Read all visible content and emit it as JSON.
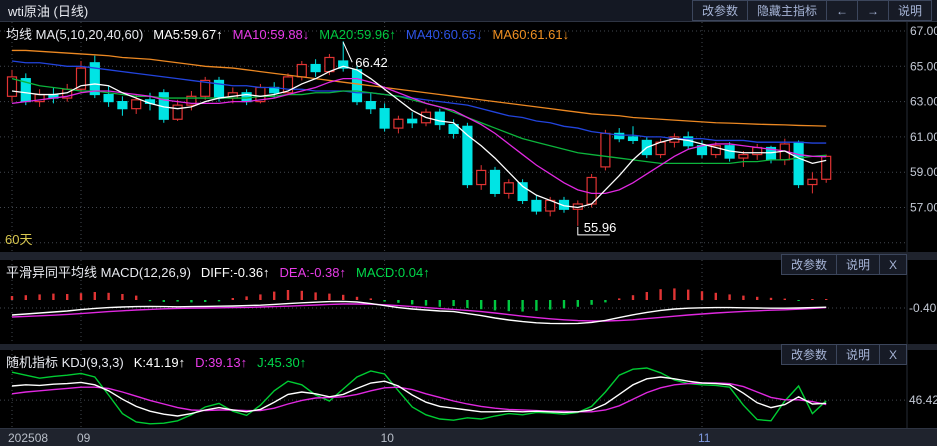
{
  "header": {
    "title": "wti原油 (日线)",
    "buttons": {
      "change_params": "改参数",
      "hide_main_indicator": "隐藏主指标",
      "arrow_left": "←",
      "arrow_right": "→",
      "help": "说明"
    }
  },
  "main_panel": {
    "indicator_label": "均线 MA(5,10,20,40,60)",
    "ma_labels": [
      {
        "text": "MA5:59.67↑",
        "color": "#ffffff"
      },
      {
        "text": "MA10:59.88↓",
        "color": "#e83ce8"
      },
      {
        "text": "MA20:59.96↑",
        "color": "#00c840"
      },
      {
        "text": "MA40:60.65↓",
        "color": "#2e54e8"
      },
      {
        "text": "MA60:61.61↓",
        "color": "#f09022"
      }
    ],
    "period_label": "60天",
    "y_axis_labels": [
      "67.00",
      "65.00",
      "63.00",
      "61.00",
      "59.00",
      "57.00"
    ]
  },
  "macd_panel": {
    "indicator_label": "平滑异同平均线 MACD(12,26,9)",
    "value_labels": [
      {
        "text": "DIFF:-0.36↑",
        "color": "#ffffff"
      },
      {
        "text": "DEA:-0.38↑",
        "color": "#e83ce8"
      },
      {
        "text": "MACD:0.04↑",
        "color": "#00d84a"
      }
    ],
    "buttons": {
      "change_params": "改参数",
      "help": "说明",
      "close": "X"
    },
    "y_axis_label": "-0.40"
  },
  "kdj_panel": {
    "indicator_label": "随机指标 KDJ(9,3,3)",
    "value_labels": [
      {
        "text": "K:41.19↑",
        "color": "#ffffff"
      },
      {
        "text": "D:39.13↑",
        "color": "#e83ce8"
      },
      {
        "text": "J:45.30↑",
        "color": "#00d84a"
      }
    ],
    "buttons": {
      "change_params": "改参数",
      "help": "说明",
      "close": "X"
    },
    "y_axis_label": "46.42"
  },
  "x_axis": {
    "labels": [
      {
        "text": "202508",
        "candle_index": 0,
        "highlight": false
      },
      {
        "text": "09",
        "candle_index": 5,
        "highlight": false
      },
      {
        "text": "10",
        "candle_index": 27,
        "highlight": false
      },
      {
        "text": "11",
        "candle_index": 50,
        "highlight": true
      }
    ]
  },
  "colors": {
    "up": "#e13434",
    "down": "#00e4e4",
    "ma5": "#ffffff",
    "ma10": "#e028e0",
    "ma20": "#0cb43c",
    "ma40": "#2244dd",
    "ma60": "#ec8822",
    "diff": "#ffffff",
    "dea": "#e028e0",
    "hist_up": "#e13434",
    "hist_down": "#00c840",
    "k": "#ffffff",
    "d": "#e028e0",
    "j": "#00cc33",
    "grid": "#4a4f58",
    "annotation": "#ffffff",
    "panel_border": "#262b36"
  },
  "chart_data": {
    "type": "candlestick",
    "symbol": "wti原油",
    "period": "日线",
    "visible_days": 60,
    "price_axis": {
      "gridlines": [
        67,
        65,
        63,
        61,
        59,
        57,
        55
      ],
      "labeled": [
        67,
        65,
        63,
        61,
        59,
        57
      ]
    },
    "high_annotation": {
      "index": 24,
      "value": 66.42,
      "label": "66.42"
    },
    "low_annotation": {
      "index": 41,
      "value": 55.96,
      "label": "55.96"
    },
    "candles": [
      [
        63.3,
        64.8,
        63.0,
        64.4
      ],
      [
        64.3,
        64.6,
        62.8,
        63.0
      ],
      [
        63.0,
        63.7,
        62.7,
        63.4
      ],
      [
        63.4,
        63.8,
        62.9,
        63.2
      ],
      [
        63.2,
        64.0,
        63.0,
        63.7
      ],
      [
        63.7,
        65.3,
        63.5,
        64.9
      ],
      [
        65.2,
        65.6,
        63.2,
        63.4
      ],
      [
        63.4,
        63.9,
        62.7,
        63.0
      ],
      [
        63.0,
        63.3,
        62.2,
        62.6
      ],
      [
        62.6,
        63.4,
        62.3,
        63.1
      ],
      [
        63.1,
        63.5,
        62.5,
        62.9
      ],
      [
        63.5,
        63.7,
        61.8,
        62.0
      ],
      [
        62.0,
        63.1,
        61.9,
        62.8
      ],
      [
        62.8,
        63.6,
        62.5,
        63.3
      ],
      [
        63.3,
        64.4,
        63.1,
        64.2
      ],
      [
        64.2,
        64.4,
        63.0,
        63.2
      ],
      [
        63.2,
        63.8,
        62.9,
        63.5
      ],
      [
        63.5,
        63.7,
        62.8,
        63.0
      ],
      [
        63.0,
        64.0,
        62.9,
        63.8
      ],
      [
        63.8,
        64.1,
        63.2,
        63.5
      ],
      [
        63.5,
        64.6,
        63.4,
        64.4
      ],
      [
        64.4,
        65.3,
        64.2,
        65.1
      ],
      [
        65.1,
        65.4,
        64.4,
        64.7
      ],
      [
        64.7,
        65.7,
        64.5,
        65.5
      ],
      [
        65.3,
        66.42,
        64.7,
        64.9
      ],
      [
        64.8,
        65.0,
        62.8,
        63.0
      ],
      [
        63.0,
        63.5,
        62.3,
        62.6
      ],
      [
        62.6,
        62.9,
        61.3,
        61.5
      ],
      [
        61.5,
        62.2,
        61.2,
        62.0
      ],
      [
        62.0,
        62.4,
        61.5,
        61.8
      ],
      [
        61.8,
        62.6,
        61.6,
        62.4
      ],
      [
        62.4,
        62.6,
        61.4,
        61.7
      ],
      [
        61.7,
        62.0,
        60.9,
        61.2
      ],
      [
        61.6,
        61.8,
        58.1,
        58.3
      ],
      [
        58.3,
        59.4,
        58.0,
        59.1
      ],
      [
        59.1,
        59.3,
        57.6,
        57.8
      ],
      [
        57.8,
        58.6,
        57.5,
        58.4
      ],
      [
        58.4,
        58.6,
        57.2,
        57.4
      ],
      [
        57.4,
        57.7,
        56.6,
        56.8
      ],
      [
        56.8,
        57.6,
        56.5,
        57.4
      ],
      [
        57.4,
        57.6,
        56.7,
        56.9
      ],
      [
        56.9,
        57.4,
        55.96,
        57.2
      ],
      [
        57.2,
        58.9,
        57.0,
        58.7
      ],
      [
        59.3,
        61.4,
        59.1,
        61.2
      ],
      [
        61.2,
        61.5,
        60.7,
        60.9
      ],
      [
        61.0,
        61.6,
        60.6,
        60.8
      ],
      [
        60.8,
        61.0,
        59.8,
        60.0
      ],
      [
        60.0,
        60.9,
        59.8,
        60.7
      ],
      [
        60.7,
        61.2,
        60.4,
        61.0
      ],
      [
        61.0,
        61.3,
        60.3,
        60.5
      ],
      [
        60.5,
        60.8,
        59.8,
        60.0
      ],
      [
        60.0,
        60.7,
        59.8,
        60.5
      ],
      [
        60.5,
        60.7,
        59.6,
        59.8
      ],
      [
        59.8,
        60.2,
        59.3,
        60.0
      ],
      [
        60.0,
        60.6,
        59.7,
        60.4
      ],
      [
        60.4,
        60.5,
        59.5,
        59.7
      ],
      [
        59.7,
        60.9,
        59.4,
        60.6
      ],
      [
        60.7,
        60.8,
        58.1,
        58.3
      ],
      [
        58.3,
        59.0,
        57.8,
        58.6
      ],
      [
        58.6,
        60.0,
        58.4,
        59.9
      ]
    ],
    "ma": {
      "ma5": [
        63.6,
        63.5,
        63.4,
        63.4,
        63.5,
        63.9,
        64.0,
        63.9,
        63.5,
        63.2,
        62.9,
        62.7,
        62.6,
        62.7,
        63.0,
        63.2,
        63.3,
        63.4,
        63.3,
        63.4,
        63.6,
        64.0,
        64.3,
        64.7,
        65.0,
        64.8,
        64.3,
        63.7,
        63.1,
        62.5,
        62.1,
        61.9,
        61.8,
        61.1,
        60.5,
        59.8,
        59.0,
        58.2,
        57.7,
        57.4,
        57.1,
        57.0,
        57.2,
        58.0,
        58.8,
        59.7,
        60.4,
        60.7,
        60.9,
        60.8,
        60.6,
        60.4,
        60.2,
        60.1,
        60.1,
        60.1,
        60.2,
        59.8,
        59.5,
        59.67
      ],
      "ma10": [
        62.9,
        63.0,
        63.1,
        63.2,
        63.3,
        63.5,
        63.6,
        63.6,
        63.5,
        63.4,
        63.3,
        63.1,
        63.0,
        62.9,
        62.9,
        62.9,
        63.0,
        63.0,
        63.1,
        63.2,
        63.4,
        63.6,
        63.8,
        64.1,
        64.3,
        64.3,
        64.1,
        63.8,
        63.5,
        63.2,
        62.9,
        62.7,
        62.5,
        62.1,
        61.7,
        61.2,
        60.6,
        60.0,
        59.4,
        58.9,
        58.4,
        58.0,
        57.8,
        57.8,
        58.0,
        58.4,
        58.9,
        59.4,
        59.9,
        60.3,
        60.5,
        60.6,
        60.6,
        60.5,
        60.4,
        60.3,
        60.2,
        60.0,
        59.9,
        59.88
      ],
      "ma20": [
        64.3,
        64.1,
        63.9,
        63.8,
        63.7,
        63.6,
        63.6,
        63.5,
        63.4,
        63.3,
        63.3,
        63.2,
        63.2,
        63.2,
        63.2,
        63.2,
        63.2,
        63.2,
        63.3,
        63.3,
        63.4,
        63.4,
        63.5,
        63.5,
        63.6,
        63.6,
        63.5,
        63.4,
        63.3,
        63.1,
        62.9,
        62.7,
        62.4,
        62.1,
        61.8,
        61.5,
        61.2,
        60.9,
        60.7,
        60.5,
        60.3,
        60.1,
        60.0,
        59.9,
        59.8,
        59.7,
        59.6,
        59.5,
        59.5,
        59.5,
        59.5,
        59.5,
        59.5,
        59.6,
        59.6,
        59.7,
        59.7,
        59.8,
        59.9,
        59.96
      ],
      "ma40": [
        65.3,
        65.2,
        65.2,
        65.1,
        65.0,
        65.0,
        64.9,
        64.8,
        64.7,
        64.6,
        64.5,
        64.4,
        64.3,
        64.2,
        64.1,
        64.0,
        63.9,
        63.9,
        63.8,
        63.8,
        63.7,
        63.7,
        63.6,
        63.6,
        63.6,
        63.5,
        63.5,
        63.4,
        63.3,
        63.2,
        63.1,
        63.0,
        62.9,
        62.8,
        62.6,
        62.4,
        62.2,
        62.1,
        61.9,
        61.8,
        61.6,
        61.5,
        61.3,
        61.2,
        61.1,
        61.1,
        61.0,
        61.0,
        60.9,
        60.9,
        60.9,
        60.8,
        60.8,
        60.8,
        60.7,
        60.7,
        60.7,
        60.7,
        60.65,
        60.65
      ],
      "ma60": [
        65.9,
        65.9,
        65.85,
        65.8,
        65.75,
        65.7,
        65.65,
        65.6,
        65.5,
        65.45,
        65.4,
        65.3,
        65.2,
        65.1,
        65.0,
        64.95,
        64.9,
        64.8,
        64.7,
        64.6,
        64.5,
        64.4,
        64.3,
        64.2,
        64.1,
        64.0,
        63.9,
        63.8,
        63.7,
        63.6,
        63.5,
        63.4,
        63.3,
        63.2,
        63.1,
        63.0,
        62.9,
        62.8,
        62.7,
        62.6,
        62.5,
        62.4,
        62.3,
        62.25,
        62.2,
        62.1,
        62.05,
        62.0,
        61.95,
        61.9,
        61.85,
        61.8,
        61.78,
        61.75,
        61.72,
        61.7,
        61.68,
        61.65,
        61.63,
        61.61
      ]
    },
    "macd": {
      "params": "12,26,9",
      "gridline_value": -0.4,
      "diff": [
        -0.75,
        -0.7,
        -0.65,
        -0.6,
        -0.55,
        -0.48,
        -0.42,
        -0.38,
        -0.35,
        -0.33,
        -0.32,
        -0.33,
        -0.34,
        -0.33,
        -0.32,
        -0.31,
        -0.3,
        -0.28,
        -0.26,
        -0.22,
        -0.18,
        -0.14,
        -0.11,
        -0.08,
        -0.07,
        -0.1,
        -0.18,
        -0.28,
        -0.38,
        -0.45,
        -0.5,
        -0.55,
        -0.58,
        -0.68,
        -0.78,
        -0.9,
        -1.0,
        -1.08,
        -1.14,
        -1.17,
        -1.18,
        -1.17,
        -1.12,
        -1.02,
        -0.88,
        -0.74,
        -0.62,
        -0.52,
        -0.45,
        -0.41,
        -0.39,
        -0.38,
        -0.38,
        -0.39,
        -0.4,
        -0.41,
        -0.41,
        -0.4,
        -0.38,
        -0.36
      ],
      "dea": [
        -0.85,
        -0.82,
        -0.79,
        -0.76,
        -0.72,
        -0.68,
        -0.63,
        -0.58,
        -0.54,
        -0.5,
        -0.47,
        -0.44,
        -0.42,
        -0.41,
        -0.4,
        -0.39,
        -0.38,
        -0.37,
        -0.35,
        -0.33,
        -0.31,
        -0.28,
        -0.25,
        -0.22,
        -0.2,
        -0.2,
        -0.21,
        -0.24,
        -0.28,
        -0.33,
        -0.38,
        -0.43,
        -0.47,
        -0.52,
        -0.58,
        -0.65,
        -0.73,
        -0.81,
        -0.88,
        -0.94,
        -0.99,
        -1.03,
        -1.05,
        -1.05,
        -1.03,
        -0.99,
        -0.93,
        -0.87,
        -0.81,
        -0.75,
        -0.7,
        -0.65,
        -0.61,
        -0.57,
        -0.54,
        -0.51,
        -0.49,
        -0.46,
        -0.42,
        -0.38
      ],
      "hist": [
        0.2,
        0.24,
        0.28,
        0.32,
        0.3,
        0.34,
        0.4,
        0.36,
        0.3,
        0.22,
        -0.06,
        -0.1,
        -0.08,
        -0.12,
        -0.1,
        -0.07,
        0.1,
        0.18,
        0.28,
        0.42,
        0.5,
        0.46,
        0.38,
        0.32,
        0.26,
        0.16,
        0.08,
        -0.08,
        -0.14,
        -0.22,
        -0.28,
        -0.34,
        -0.3,
        -0.4,
        -0.46,
        -0.52,
        -0.56,
        -0.58,
        -0.54,
        -0.48,
        -0.42,
        -0.34,
        -0.24,
        -0.12,
        0.08,
        0.24,
        0.4,
        0.54,
        0.58,
        0.52,
        0.44,
        0.36,
        0.28,
        0.22,
        0.16,
        0.11,
        0.07,
        -0.05,
        0.03,
        0.04
      ]
    },
    "kdj": {
      "params": "9,3,3",
      "gridline_value": 46.42,
      "range": [
        0,
        100
      ],
      "k": [
        70,
        72,
        71,
        73,
        74,
        76,
        72,
        62,
        48,
        36,
        28,
        23,
        20,
        24,
        30,
        34,
        30,
        27,
        31,
        43,
        56,
        60,
        57,
        52,
        56,
        66,
        75,
        78,
        70,
        55,
        43,
        36,
        33,
        30,
        27,
        27,
        28,
        27,
        28,
        27,
        26,
        27,
        30,
        40,
        56,
        72,
        82,
        85,
        82,
        78,
        75,
        74,
        72,
        58,
        42,
        34,
        39,
        52,
        40,
        41.19
      ],
      "d": [
        57,
        60,
        62,
        64,
        66,
        68,
        68,
        66,
        60,
        53,
        46,
        40,
        34,
        30,
        29,
        30,
        30,
        29,
        29,
        33,
        40,
        46,
        50,
        51,
        52,
        56,
        62,
        67,
        68,
        64,
        57,
        51,
        45,
        40,
        36,
        33,
        31,
        30,
        29,
        28,
        28,
        27,
        27,
        30,
        37,
        48,
        59,
        67,
        72,
        74,
        75,
        75,
        74,
        69,
        60,
        51,
        47,
        47,
        44,
        39.13
      ],
      "j": [
        93,
        88,
        83,
        86,
        88,
        91,
        85,
        55,
        24,
        10,
        7,
        8,
        12,
        22,
        35,
        41,
        28,
        21,
        38,
        62,
        78,
        72,
        55,
        45,
        65,
        85,
        95,
        90,
        62,
        35,
        22,
        15,
        13,
        17,
        15,
        20,
        24,
        22,
        26,
        25,
        23,
        26,
        36,
        60,
        88,
        98,
        100,
        92,
        80,
        74,
        72,
        71,
        68,
        38,
        14,
        12,
        45,
        70,
        24,
        45.3
      ]
    }
  }
}
